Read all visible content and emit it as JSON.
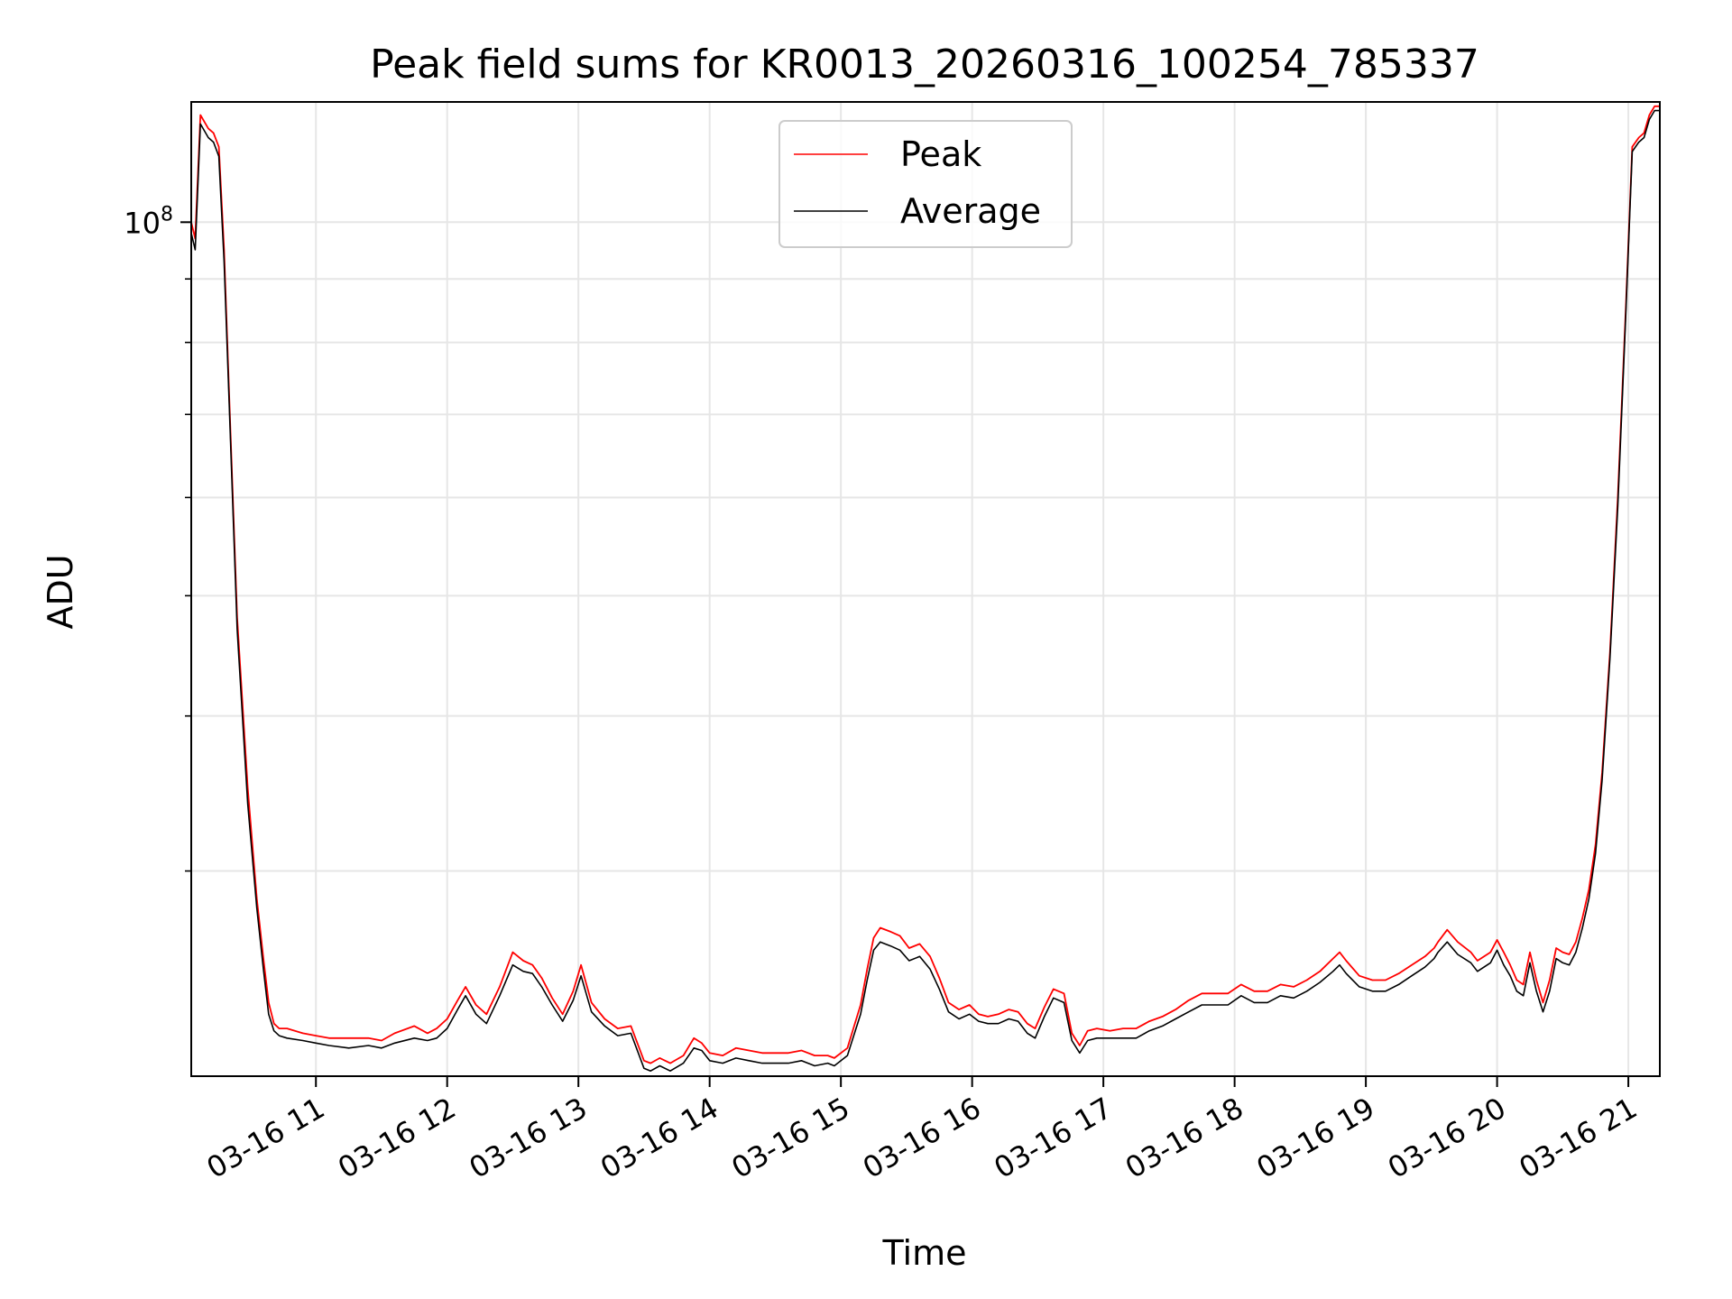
{
  "chart_data": {
    "type": "line",
    "title": "Peak field sums for KR0013_20260316_100254_785337",
    "xlabel": "Time",
    "ylabel": "ADU",
    "yscale": "log",
    "ylim": [
      20500000,
      125000000
    ],
    "xlim": [
      10.05,
      21.24
    ],
    "grid": true,
    "legend_position": "top-center",
    "x_ticks": [
      {
        "value": 11,
        "label": "03-16 11"
      },
      {
        "value": 12,
        "label": "03-16 12"
      },
      {
        "value": 13,
        "label": "03-16 13"
      },
      {
        "value": 14,
        "label": "03-16 14"
      },
      {
        "value": 15,
        "label": "03-16 15"
      },
      {
        "value": 16,
        "label": "03-16 16"
      },
      {
        "value": 17,
        "label": "03-16 17"
      },
      {
        "value": 18,
        "label": "03-16 18"
      },
      {
        "value": 19,
        "label": "03-16 19"
      },
      {
        "value": 20,
        "label": "03-16 20"
      },
      {
        "value": 21,
        "label": "03-16 21"
      }
    ],
    "y_major_ticks": [
      {
        "value": 100000000,
        "base": "10",
        "exp": "8"
      }
    ],
    "y_minor_ticks": [
      30000000,
      40000000,
      50000000,
      60000000,
      70000000,
      80000000,
      90000000
    ],
    "series": [
      {
        "name": "Peak",
        "color": "#ff0000",
        "x": [
          10.05,
          10.08,
          10.12,
          10.18,
          10.22,
          10.26,
          10.3,
          10.34,
          10.4,
          10.48,
          10.55,
          10.6,
          10.64,
          10.68,
          10.72,
          10.78,
          10.9,
          11.0,
          11.1,
          11.25,
          11.4,
          11.5,
          11.6,
          11.75,
          11.85,
          11.92,
          12.0,
          12.08,
          12.14,
          12.22,
          12.3,
          12.4,
          12.5,
          12.58,
          12.65,
          12.72,
          12.8,
          12.88,
          12.96,
          13.02,
          13.1,
          13.2,
          13.3,
          13.4,
          13.5,
          13.55,
          13.62,
          13.7,
          13.8,
          13.88,
          13.94,
          14.0,
          14.1,
          14.2,
          14.3,
          14.4,
          14.5,
          14.6,
          14.7,
          14.8,
          14.9,
          14.95,
          15.05,
          15.15,
          15.2,
          15.25,
          15.3,
          15.38,
          15.45,
          15.52,
          15.6,
          15.68,
          15.75,
          15.82,
          15.9,
          15.98,
          16.05,
          16.12,
          16.2,
          16.28,
          16.35,
          16.42,
          16.48,
          16.55,
          16.62,
          16.7,
          16.76,
          16.82,
          16.88,
          16.95,
          17.05,
          17.15,
          17.25,
          17.35,
          17.45,
          17.55,
          17.65,
          17.75,
          17.85,
          17.95,
          18.05,
          18.15,
          18.25,
          18.35,
          18.45,
          18.55,
          18.65,
          18.75,
          18.8,
          18.85,
          18.95,
          19.05,
          19.15,
          19.25,
          19.35,
          19.45,
          19.52,
          19.55,
          19.62,
          19.7,
          19.8,
          19.85,
          19.95,
          20.0,
          20.05,
          20.1,
          20.15,
          20.2,
          20.25,
          20.3,
          20.35,
          20.4,
          20.45,
          20.5,
          20.55,
          20.6,
          20.65,
          20.7,
          20.75,
          20.8,
          20.86,
          20.92,
          20.98,
          21.03,
          21.08,
          21.12,
          21.16,
          21.2,
          21.24
        ],
        "y": [
          100000000,
          97000000,
          122000000,
          119000000,
          118000000,
          115000000,
          95000000,
          72000000,
          48000000,
          35000000,
          28500000,
          25500000,
          23500000,
          22600000,
          22400000,
          22400000,
          22200000,
          22100000,
          22000000,
          22000000,
          22000000,
          21900000,
          22200000,
          22500000,
          22200000,
          22400000,
          22800000,
          23600000,
          24200000,
          23400000,
          23000000,
          24200000,
          25800000,
          25400000,
          25200000,
          24600000,
          23700000,
          23000000,
          24000000,
          25200000,
          23500000,
          22800000,
          22400000,
          22500000,
          21100000,
          21000000,
          21200000,
          21000000,
          21300000,
          22000000,
          21800000,
          21400000,
          21300000,
          21600000,
          21500000,
          21400000,
          21400000,
          21400000,
          21500000,
          21300000,
          21300000,
          21200000,
          21600000,
          23400000,
          25000000,
          26500000,
          27000000,
          26800000,
          26600000,
          26000000,
          26200000,
          25600000,
          24600000,
          23500000,
          23200000,
          23400000,
          23000000,
          22900000,
          23000000,
          23200000,
          23100000,
          22600000,
          22400000,
          23300000,
          24100000,
          23900000,
          22200000,
          21700000,
          22300000,
          22400000,
          22300000,
          22400000,
          22400000,
          22700000,
          22900000,
          23200000,
          23600000,
          23900000,
          23900000,
          23900000,
          24300000,
          24000000,
          24000000,
          24300000,
          24200000,
          24500000,
          24900000,
          25500000,
          25800000,
          25400000,
          24700000,
          24500000,
          24500000,
          24800000,
          25200000,
          25600000,
          26000000,
          26300000,
          26900000,
          26300000,
          25800000,
          25400000,
          25800000,
          26400000,
          25800000,
          25200000,
          24500000,
          24300000,
          25800000,
          24500000,
          23500000,
          24500000,
          26000000,
          25800000,
          25700000,
          26300000,
          27500000,
          29000000,
          31500000,
          36000000,
          45000000,
          60000000,
          85000000,
          115000000,
          117000000,
          118000000,
          122000000,
          124000000,
          124000000
        ]
      },
      {
        "name": "Average",
        "color": "#000000",
        "x": [
          10.05,
          10.08,
          10.12,
          10.18,
          10.22,
          10.26,
          10.3,
          10.34,
          10.4,
          10.48,
          10.55,
          10.6,
          10.64,
          10.68,
          10.72,
          10.78,
          10.9,
          11.0,
          11.1,
          11.25,
          11.4,
          11.5,
          11.6,
          11.75,
          11.85,
          11.92,
          12.0,
          12.08,
          12.14,
          12.22,
          12.3,
          12.4,
          12.5,
          12.58,
          12.65,
          12.72,
          12.8,
          12.88,
          12.96,
          13.02,
          13.1,
          13.2,
          13.3,
          13.4,
          13.5,
          13.55,
          13.62,
          13.7,
          13.8,
          13.88,
          13.94,
          14.0,
          14.1,
          14.2,
          14.3,
          14.4,
          14.5,
          14.6,
          14.7,
          14.8,
          14.9,
          14.95,
          15.05,
          15.15,
          15.2,
          15.25,
          15.3,
          15.38,
          15.45,
          15.52,
          15.6,
          15.68,
          15.75,
          15.82,
          15.9,
          15.98,
          16.05,
          16.12,
          16.2,
          16.28,
          16.35,
          16.42,
          16.48,
          16.55,
          16.62,
          16.7,
          16.76,
          16.82,
          16.88,
          16.95,
          17.05,
          17.15,
          17.25,
          17.35,
          17.45,
          17.55,
          17.65,
          17.75,
          17.85,
          17.95,
          18.05,
          18.15,
          18.25,
          18.35,
          18.45,
          18.55,
          18.65,
          18.75,
          18.8,
          18.85,
          18.95,
          19.05,
          19.15,
          19.25,
          19.35,
          19.45,
          19.52,
          19.55,
          19.62,
          19.7,
          19.8,
          19.85,
          19.95,
          20.0,
          20.05,
          20.1,
          20.15,
          20.2,
          20.25,
          20.3,
          20.35,
          20.4,
          20.45,
          20.5,
          20.55,
          20.6,
          20.65,
          20.7,
          20.75,
          20.8,
          20.86,
          20.92,
          20.98,
          21.03,
          21.08,
          21.12,
          21.16,
          21.2,
          21.24
        ],
        "y": [
          98000000,
          95000000,
          120000000,
          117000000,
          116000000,
          113000000,
          93000000,
          71000000,
          47000000,
          34000000,
          28000000,
          25000000,
          23000000,
          22300000,
          22100000,
          22000000,
          21900000,
          21800000,
          21700000,
          21600000,
          21700000,
          21600000,
          21800000,
          22000000,
          21900000,
          22000000,
          22400000,
          23200000,
          23800000,
          23000000,
          22600000,
          23800000,
          25200000,
          24900000,
          24800000,
          24200000,
          23400000,
          22700000,
          23600000,
          24700000,
          23100000,
          22500000,
          22100000,
          22200000,
          20800000,
          20700000,
          20900000,
          20700000,
          21000000,
          21600000,
          21500000,
          21100000,
          21000000,
          21200000,
          21100000,
          21000000,
          21000000,
          21000000,
          21100000,
          20900000,
          21000000,
          20900000,
          21300000,
          23000000,
          24500000,
          25900000,
          26300000,
          26100000,
          25900000,
          25400000,
          25600000,
          25000000,
          24100000,
          23100000,
          22800000,
          23000000,
          22700000,
          22600000,
          22600000,
          22800000,
          22700000,
          22200000,
          22000000,
          22900000,
          23700000,
          23500000,
          21900000,
          21400000,
          21900000,
          22000000,
          22000000,
          22000000,
          22000000,
          22300000,
          22500000,
          22800000,
          23100000,
          23400000,
          23400000,
          23400000,
          23800000,
          23500000,
          23500000,
          23800000,
          23700000,
          24000000,
          24400000,
          24900000,
          25200000,
          24800000,
          24200000,
          24000000,
          24000000,
          24300000,
          24700000,
          25100000,
          25500000,
          25800000,
          26300000,
          25700000,
          25300000,
          24900000,
          25300000,
          25900000,
          25200000,
          24700000,
          24000000,
          23800000,
          25300000,
          24000000,
          23100000,
          24000000,
          25500000,
          25300000,
          25200000,
          25800000,
          27000000,
          28500000,
          31000000,
          35500000,
          44500000,
          59000000,
          84000000,
          114000000,
          116000000,
          117000000,
          121000000,
          123000000,
          123000000
        ]
      }
    ]
  }
}
